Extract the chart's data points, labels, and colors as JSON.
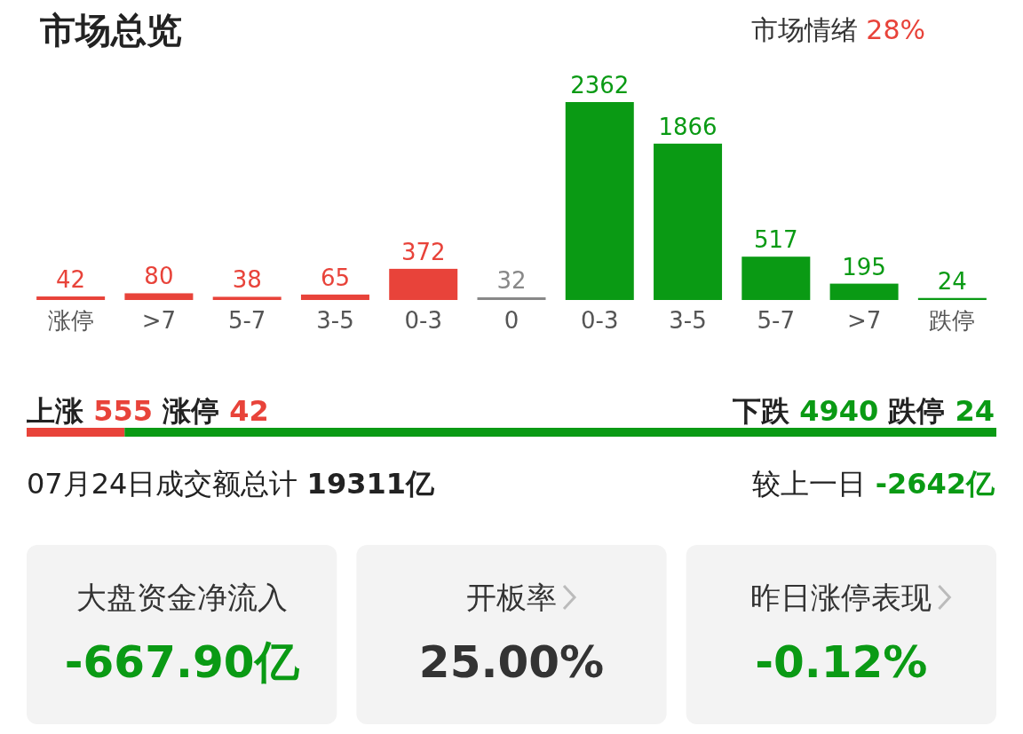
{
  "chart_data": [
    {
      "type": "bar",
      "title": "市场总览",
      "annotations": [
        "市场情绪 28%"
      ],
      "categories": [
        "涨停",
        ">7",
        "5-7",
        "3-5",
        "0-3",
        "0",
        "0-3",
        "3-5",
        "5-7",
        ">7",
        "跌停"
      ],
      "values": [
        42,
        80,
        38,
        65,
        372,
        32,
        2362,
        1866,
        517,
        195,
        24
      ],
      "colors": [
        "#e8433a",
        "#e8433a",
        "#e8433a",
        "#e8433a",
        "#e8433a",
        "#888888",
        "#0a9a14",
        "#0a9a14",
        "#0a9a14",
        "#0a9a14",
        "#0a9a14"
      ],
      "data_labels": true
    },
    {
      "type": "bar",
      "orientation": "horizontal",
      "stacked": true,
      "categories": [
        null
      ],
      "series": [
        {
          "name": "上涨",
          "color": "#e8433a",
          "values": [
            555
          ],
          "value_labels": [
            "555"
          ]
        },
        {
          "name": "下跌",
          "color": "#0a9a14",
          "values": [
            4940
          ],
          "value_labels": [
            "4940"
          ]
        }
      ],
      "annotations": [
        "涨停 42",
        "跌停 24",
        "07月24日成交额总计 **19311亿**",
        "较上一日 **-2642亿**"
      ]
    },
    {
      "type": "other",
      "categories": [
        "大盘资金净流入",
        "开板率",
        "昨日涨停表现"
      ],
      "value_labels": [
        "-667.90亿",
        "25.00%",
        "-0.12%"
      ],
      "colors": [
        "#0a9a14",
        "#333333",
        "#0a9a14"
      ]
    }
  ]
}
